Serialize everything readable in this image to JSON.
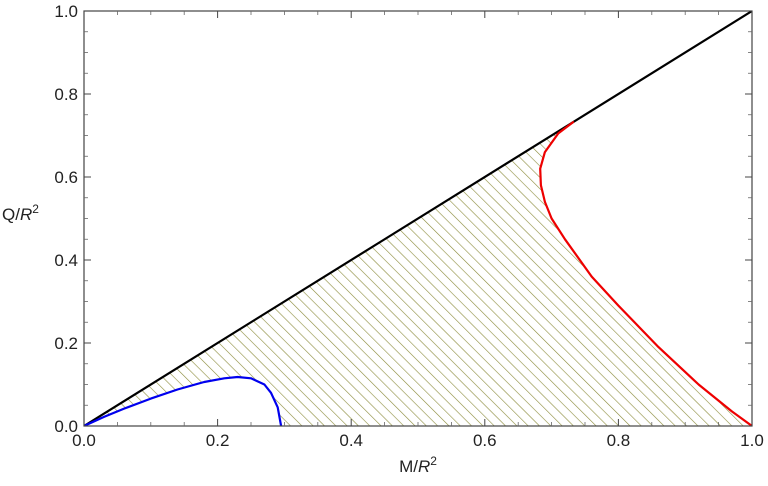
{
  "chart_data": {
    "type": "line",
    "title": "",
    "xlabel": {
      "base": "M/",
      "var": "R",
      "sup": "2"
    },
    "ylabel": {
      "base": "Q/",
      "var": "R",
      "sup": "2"
    },
    "xlim": [
      0,
      1
    ],
    "ylim": [
      0,
      1
    ],
    "x_ticks": [
      "0.0",
      "0.2",
      "0.4",
      "0.6",
      "0.8",
      "1.0"
    ],
    "y_ticks": [
      "0.0",
      "0.2",
      "0.4",
      "0.6",
      "0.8",
      "1.0"
    ],
    "grid": false,
    "series": [
      {
        "color": "#000000",
        "x": [
          0,
          1
        ],
        "y": [
          0,
          1
        ]
      },
      {
        "color": "#0000ee",
        "x": [
          0.0,
          0.03,
          0.06,
          0.1,
          0.14,
          0.18,
          0.21,
          0.23,
          0.25,
          0.27,
          0.28,
          0.29,
          0.295
        ],
        "y": [
          0.0,
          0.022,
          0.042,
          0.066,
          0.088,
          0.106,
          0.115,
          0.118,
          0.115,
          0.1,
          0.08,
          0.045,
          0.0
        ]
      },
      {
        "color": "#ee0000",
        "x": [
          0.732,
          0.71,
          0.69,
          0.683,
          0.684,
          0.69,
          0.7,
          0.72,
          0.76,
          0.8,
          0.86,
          0.92,
          0.97,
          1.0
        ],
        "y": [
          0.732,
          0.705,
          0.66,
          0.62,
          0.58,
          0.54,
          0.5,
          0.45,
          0.36,
          0.29,
          0.19,
          0.1,
          0.035,
          0.0
        ]
      }
    ],
    "shaded_region": {
      "pattern": "diagonal-hatch",
      "color": "#8c8c3c",
      "description_bounds": [
        "diagonal",
        "blue",
        "red",
        "x-axis"
      ]
    }
  }
}
